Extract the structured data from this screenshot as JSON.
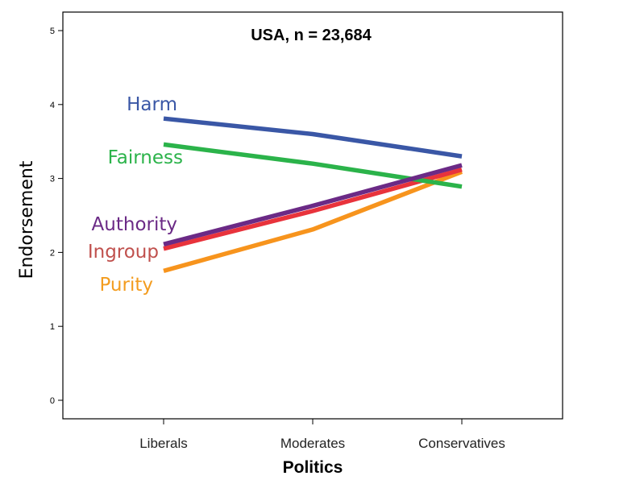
{
  "chart_data": {
    "type": "line",
    "title": "USA, n = 23,684",
    "xlabel": "Politics",
    "ylabel": "Endorsement",
    "categories": [
      "Liberals",
      "Moderates",
      "Conservatives"
    ],
    "ylim": [
      0,
      5
    ],
    "yticks": [
      "0",
      "1",
      "2",
      "3",
      "4",
      "5"
    ],
    "grid": false,
    "legend": "inline labels at left of lines",
    "series": [
      {
        "name": "Harm",
        "color": "#3A57A6",
        "values": [
          3.81,
          3.6,
          3.3
        ]
      },
      {
        "name": "Fairness",
        "color": "#2BB34A",
        "values": [
          3.46,
          3.2,
          2.89
        ]
      },
      {
        "name": "Authority",
        "color": "#6B2A86",
        "values": [
          2.11,
          2.63,
          3.18
        ]
      },
      {
        "name": "Ingroup",
        "color": "#E8333C",
        "values": [
          2.05,
          2.56,
          3.12
        ]
      },
      {
        "name": "Purity",
        "color": "#F7941D",
        "values": [
          1.75,
          2.31,
          3.09
        ]
      }
    ],
    "label_colors": {
      "Harm": "#3A57A6",
      "Fairness": "#2BB34A",
      "Authority": "#6B2A86",
      "Ingroup": "#C0504D",
      "Purity": "#F39C1F"
    }
  }
}
